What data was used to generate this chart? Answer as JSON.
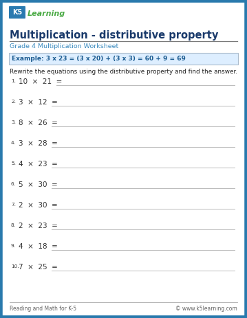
{
  "page_bg": "#ffffff",
  "border_color": "#2a7aad",
  "border_width": 4,
  "title": "Multiplication - distributive property",
  "title_color": "#1a3a6b",
  "subtitle": "Grade 4 Multiplication Worksheet",
  "subtitle_color": "#3a8abf",
  "example_bg": "#ddeeff",
  "example_border": "#aabbcc",
  "example_text": "Example: 3 x 23 = (3 x 20) + (3 x 3) = 60 + 9 = 69",
  "example_color": "#1a5a90",
  "instruction": "Rewrite the equations using the distributive property and find the answer.",
  "instruction_color": "#222222",
  "problems": [
    [
      "10",
      "21"
    ],
    [
      "3",
      "12"
    ],
    [
      "8",
      "26"
    ],
    [
      "3",
      "28"
    ],
    [
      "4",
      "23"
    ],
    [
      "5",
      "30"
    ],
    [
      "2",
      "30"
    ],
    [
      "2",
      "23"
    ],
    [
      "4",
      "18"
    ],
    [
      "7",
      "25"
    ]
  ],
  "problem_color": "#333333",
  "line_color": "#bbbbbb",
  "footer_left": "Reading and Math for K-5",
  "footer_right": "© www.k5learning.com",
  "footer_color": "#666666",
  "k5_k_color": "#ffffff",
  "k5_box_color": "#2a7ab0",
  "k5_learning_color": "#4aaa44"
}
